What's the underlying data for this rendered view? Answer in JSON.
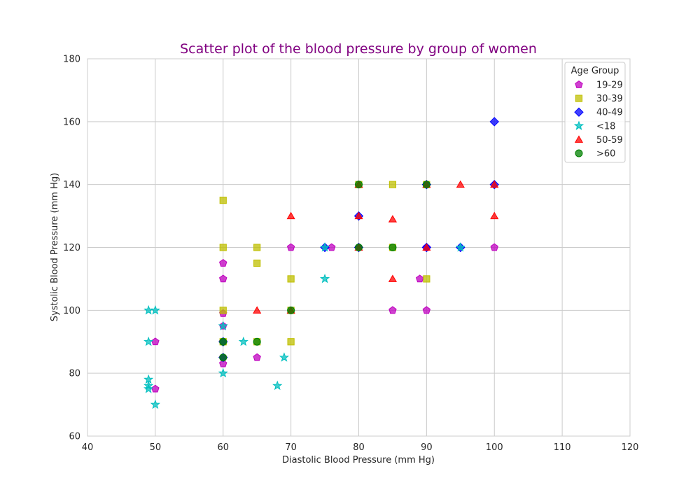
{
  "chart_data": {
    "type": "scatter",
    "title": "Scatter plot of the blood pressure by group of women",
    "title_color": "#800080",
    "xlabel": "Diastolic Blood Pressure (mm Hg)",
    "ylabel": "Systolic Blood Pressure (mm Hg)",
    "xlim": [
      40,
      120
    ],
    "ylim": [
      60,
      180
    ],
    "xticks": [
      40,
      50,
      60,
      70,
      80,
      90,
      100,
      110,
      120
    ],
    "yticks": [
      60,
      80,
      100,
      120,
      140,
      160,
      180
    ],
    "grid": true,
    "legend": {
      "title": "Age Group",
      "placement": "top-right"
    },
    "series": [
      {
        "name": "19-29",
        "marker": "pentagon",
        "color": "#bf00bf",
        "points": [
          [
            50,
            90
          ],
          [
            50,
            75
          ],
          [
            60,
            115
          ],
          [
            60,
            110
          ],
          [
            60,
            99
          ],
          [
            60,
            83
          ],
          [
            60,
            85
          ],
          [
            65,
            85
          ],
          [
            70,
            120
          ],
          [
            76,
            120
          ],
          [
            85,
            100
          ],
          [
            89,
            110
          ],
          [
            90,
            100
          ],
          [
            100,
            120
          ],
          [
            60,
            90
          ],
          [
            80,
            120
          ],
          [
            90,
            120
          ],
          [
            60,
            95
          ]
        ]
      },
      {
        "name": "30-39",
        "marker": "square",
        "color": "#bfbf00",
        "points": [
          [
            60,
            135
          ],
          [
            60,
            120
          ],
          [
            60,
            100
          ],
          [
            65,
            120
          ],
          [
            65,
            115
          ],
          [
            70,
            110
          ],
          [
            70,
            100
          ],
          [
            70,
            90
          ],
          [
            80,
            140
          ],
          [
            85,
            140
          ],
          [
            85,
            120
          ],
          [
            90,
            110
          ],
          [
            90,
            140
          ],
          [
            60,
            90
          ],
          [
            65,
            90
          ]
        ]
      },
      {
        "name": "40-49",
        "marker": "diamond",
        "color": "#0000ff",
        "points": [
          [
            60,
            90
          ],
          [
            60,
            85
          ],
          [
            75,
            120
          ],
          [
            80,
            130
          ],
          [
            80,
            120
          ],
          [
            90,
            120
          ],
          [
            95,
            120
          ],
          [
            100,
            160
          ],
          [
            100,
            140
          ],
          [
            90,
            140
          ]
        ]
      },
      {
        "name": "<18",
        "marker": "star",
        "color": "#00bfbf",
        "points": [
          [
            49,
            100
          ],
          [
            50,
            100
          ],
          [
            49,
            90
          ],
          [
            49,
            78
          ],
          [
            49,
            76
          ],
          [
            49,
            75
          ],
          [
            50,
            70
          ],
          [
            60,
            95
          ],
          [
            60,
            80
          ],
          [
            63,
            90
          ],
          [
            68,
            76
          ],
          [
            69,
            85
          ],
          [
            75,
            110
          ],
          [
            75,
            120
          ],
          [
            95,
            120
          ]
        ]
      },
      {
        "name": "50-59",
        "marker": "triangle",
        "color": "#ff0000",
        "points": [
          [
            65,
            100
          ],
          [
            70,
            130
          ],
          [
            70,
            100
          ],
          [
            80,
            140
          ],
          [
            80,
            130
          ],
          [
            80,
            120
          ],
          [
            85,
            129
          ],
          [
            85,
            110
          ],
          [
            90,
            140
          ],
          [
            90,
            120
          ],
          [
            95,
            140
          ],
          [
            100,
            140
          ],
          [
            100,
            130
          ]
        ]
      },
      {
        "name": ">60",
        "marker": "circle",
        "color": "#008000",
        "points": [
          [
            60,
            90
          ],
          [
            60,
            85
          ],
          [
            65,
            90
          ],
          [
            70,
            100
          ],
          [
            80,
            140
          ],
          [
            80,
            120
          ],
          [
            85,
            120
          ],
          [
            90,
            140
          ]
        ]
      }
    ]
  }
}
